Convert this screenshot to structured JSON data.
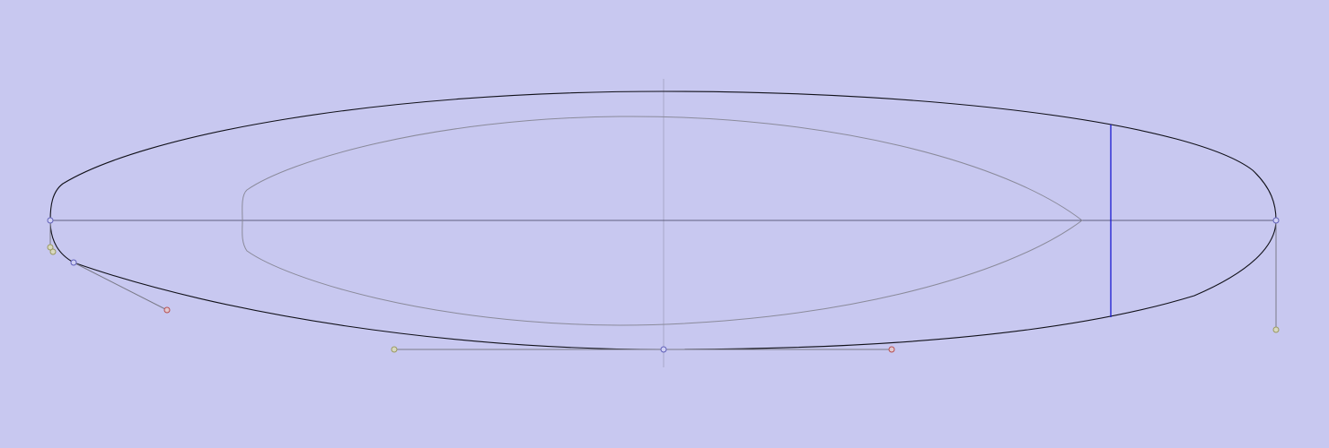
{
  "canvas": {
    "view": "outline",
    "background_color": "#c8c8f0"
  },
  "colors": {
    "outline": "#000000",
    "inner_outline": "#8a8a9a",
    "centerline": "#3c3c5a",
    "midline": "#a8a8c8",
    "station_marker": "#1a1ad0",
    "handle_line": "#7a7a88",
    "point_blue": "#6060b8",
    "point_red": "#b85050",
    "point_olive": "#9a9a60"
  },
  "control_points": [
    {
      "name": "nose-point",
      "color": "point_blue"
    },
    {
      "name": "tail-point",
      "color": "point_blue"
    },
    {
      "name": "wide-point",
      "color": "point_blue"
    },
    {
      "name": "tail-corner-point",
      "color": "point_blue"
    }
  ],
  "handles": [
    {
      "name": "wide-handle-left",
      "color": "point_olive"
    },
    {
      "name": "wide-handle-right",
      "color": "point_red"
    },
    {
      "name": "tail-corner-handle",
      "color": "point_red"
    },
    {
      "name": "nose-handle",
      "color": "point_olive"
    },
    {
      "name": "tail-handle-a",
      "color": "point_olive"
    },
    {
      "name": "tail-handle-b",
      "color": "point_olive"
    }
  ]
}
